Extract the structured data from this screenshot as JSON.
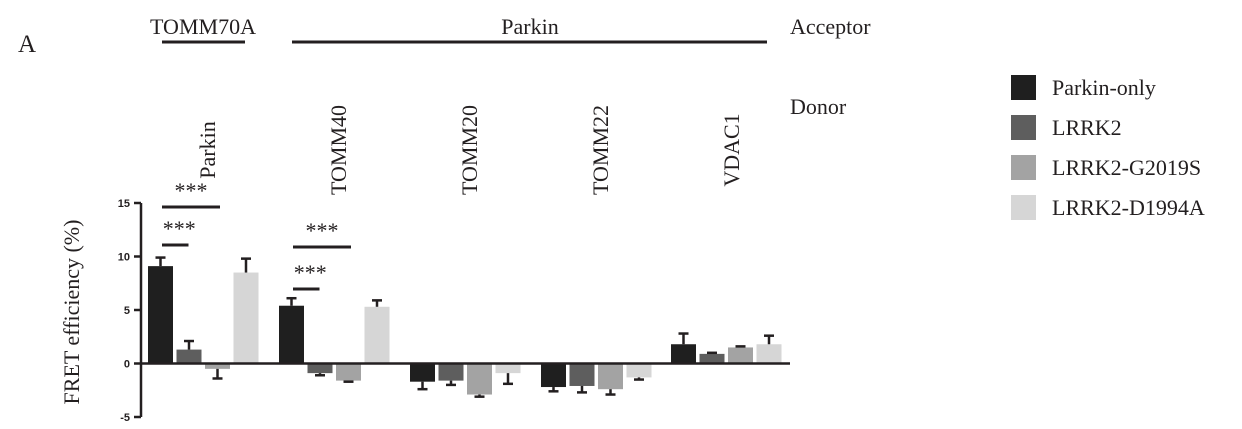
{
  "panel_label": "A",
  "header": {
    "acceptor_label": "Acceptor",
    "donor_label": "Donor",
    "acceptor_groups": [
      {
        "name": "TOMM70A"
      },
      {
        "name": "Parkin"
      }
    ]
  },
  "colors": {
    "Parkin-only": "#1f1f1f",
    "LRRK2": "#5e5e5e",
    "LRRK2-G2019S": "#a3a3a3",
    "LRRK2-D1994A": "#d6d6d6"
  },
  "chart_data": {
    "type": "bar",
    "categories": [
      "Parkin",
      "TOMM40",
      "TOMM20",
      "TOMM22",
      "VDAC1"
    ],
    "ylabel": "FRET efficiency (%)",
    "ylim": [
      -5,
      15
    ],
    "yticks": [
      15,
      10,
      5,
      0,
      -5
    ],
    "legend_position": "right",
    "series": [
      {
        "name": "Parkin-only",
        "values": [
          9.1,
          5.4,
          -1.7,
          -2.2,
          1.8
        ],
        "errors": [
          0.8,
          0.7,
          0.7,
          0.4,
          1.0
        ]
      },
      {
        "name": "LRRK2",
        "values": [
          1.3,
          -0.9,
          -1.6,
          -2.1,
          0.9
        ],
        "errors": [
          0.8,
          0.2,
          0.4,
          0.6,
          0.1
        ]
      },
      {
        "name": "LRRK2-G2019S",
        "values": [
          -0.5,
          -1.6,
          -2.9,
          -2.4,
          1.5
        ],
        "errors": [
          0.9,
          0.1,
          0.2,
          0.5,
          0.1
        ]
      },
      {
        "name": "LRRK2-D1994A",
        "values": [
          8.5,
          5.3,
          -0.9,
          -1.3,
          1.8
        ],
        "errors": [
          1.3,
          0.6,
          1.0,
          0.2,
          0.8
        ]
      }
    ],
    "significance": [
      {
        "category": 0,
        "from_series": 0,
        "to_series": 1,
        "label": "***"
      },
      {
        "category": 0,
        "from_series": 0,
        "to_series": 2,
        "label": "***"
      },
      {
        "category": 1,
        "from_series": 0,
        "to_series": 1,
        "label": "***"
      },
      {
        "category": 1,
        "from_series": 0,
        "to_series": 2,
        "label": "***"
      }
    ]
  }
}
